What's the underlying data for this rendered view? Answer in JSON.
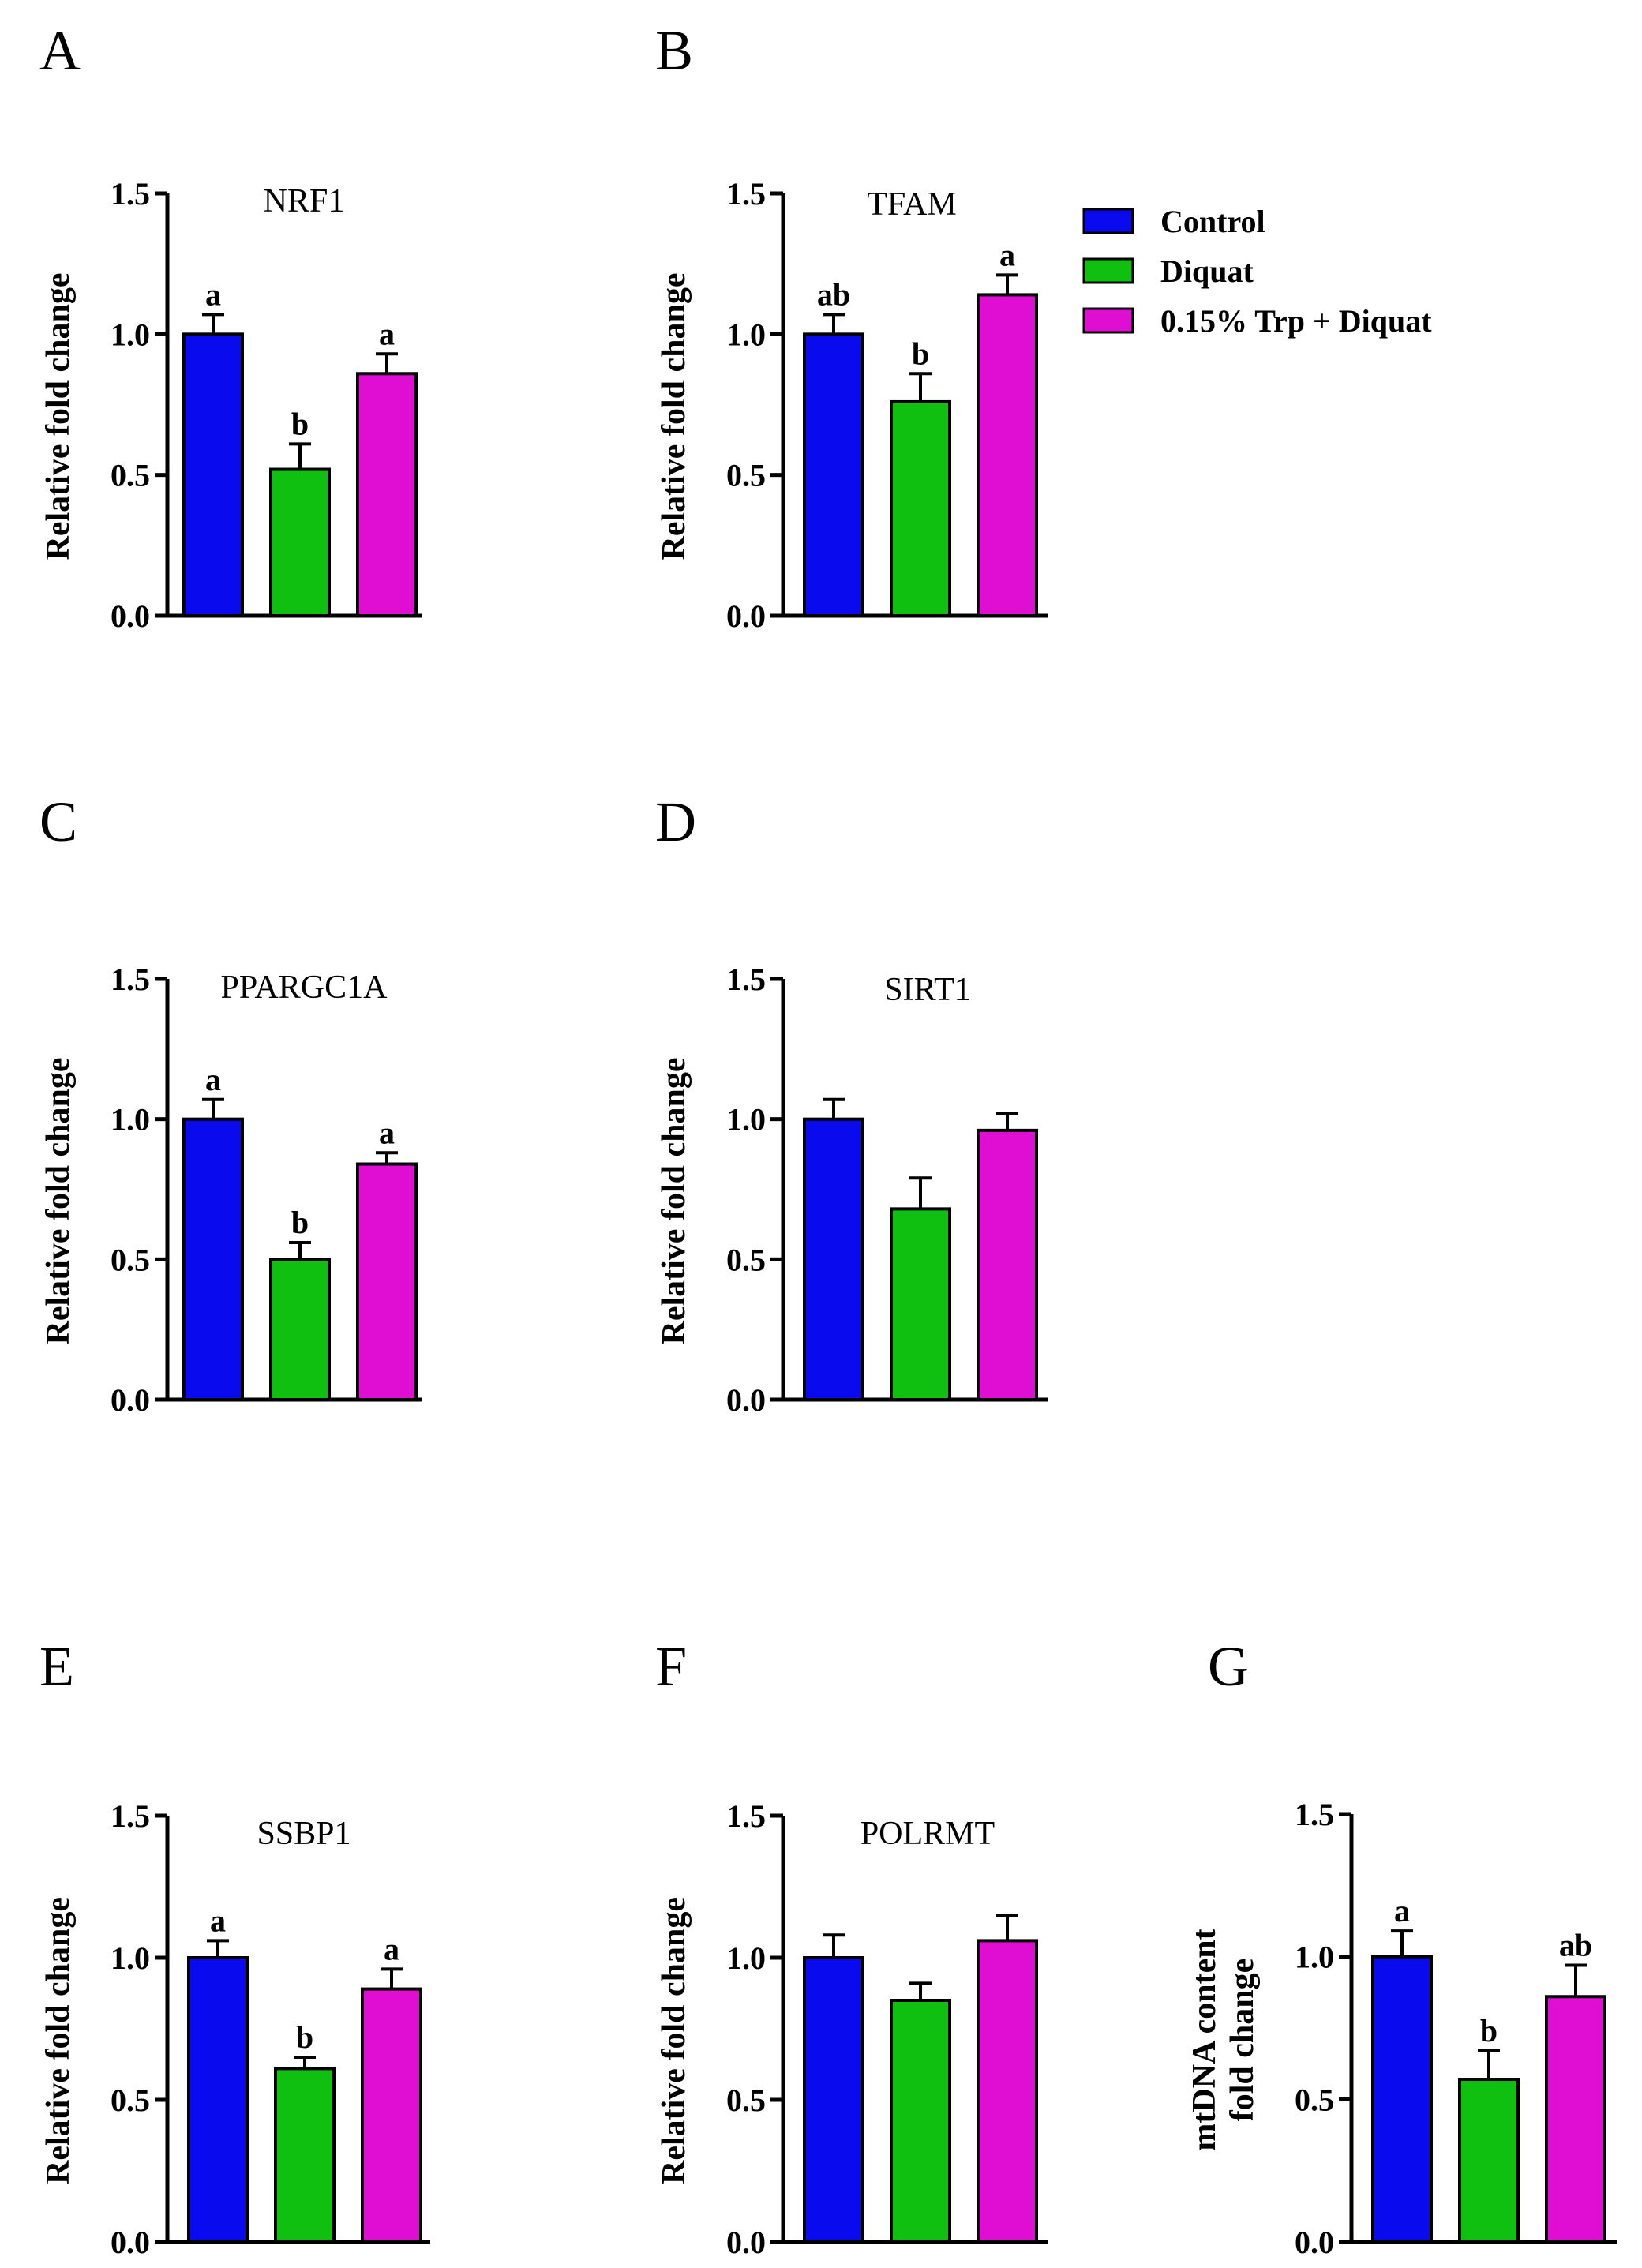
{
  "chart_data": [
    {
      "type": "bar",
      "panel": "A",
      "title": "NRF1",
      "ylabel": "Relative fold change",
      "ylim": [
        0,
        1.5
      ],
      "yticks": [
        "0.0",
        "0.5",
        "1.0",
        "1.5"
      ],
      "series": [
        {
          "name": "Control",
          "value": 1.0,
          "error": 0.07,
          "sig": "a"
        },
        {
          "name": "Diquat",
          "value": 0.52,
          "error": 0.09,
          "sig": "b"
        },
        {
          "name": "0.15% Trp + Diquat",
          "value": 0.86,
          "error": 0.07,
          "sig": "a"
        }
      ]
    },
    {
      "type": "bar",
      "panel": "B",
      "title": "TFAM",
      "ylabel": "Relative fold change",
      "ylim": [
        0,
        1.5
      ],
      "yticks": [
        "0.0",
        "0.5",
        "1.0",
        "1.5"
      ],
      "series": [
        {
          "name": "Control",
          "value": 1.0,
          "error": 0.07,
          "sig": "ab"
        },
        {
          "name": "Diquat",
          "value": 0.76,
          "error": 0.1,
          "sig": "b"
        },
        {
          "name": "0.15% Trp + Diquat",
          "value": 1.14,
          "error": 0.07,
          "sig": "a"
        }
      ]
    },
    {
      "type": "bar",
      "panel": "C",
      "title": "PPARGC1A",
      "ylabel": "Relative fold change",
      "ylim": [
        0,
        1.5
      ],
      "yticks": [
        "0.0",
        "0.5",
        "1.0",
        "1.5"
      ],
      "series": [
        {
          "name": "Control",
          "value": 1.0,
          "error": 0.07,
          "sig": "a"
        },
        {
          "name": "Diquat",
          "value": 0.5,
          "error": 0.06,
          "sig": "b"
        },
        {
          "name": "0.15% Trp + Diquat",
          "value": 0.84,
          "error": 0.04,
          "sig": "a"
        }
      ]
    },
    {
      "type": "bar",
      "panel": "D",
      "title": "SIRT1",
      "ylabel": "Relative fold change",
      "ylim": [
        0,
        1.5
      ],
      "yticks": [
        "0.0",
        "0.5",
        "1.0",
        "1.5"
      ],
      "series": [
        {
          "name": "Control",
          "value": 1.0,
          "error": 0.07,
          "sig": ""
        },
        {
          "name": "Diquat",
          "value": 0.68,
          "error": 0.11,
          "sig": ""
        },
        {
          "name": "0.15% Trp + Diquat",
          "value": 0.96,
          "error": 0.06,
          "sig": ""
        }
      ]
    },
    {
      "type": "bar",
      "panel": "E",
      "title": "SSBP1",
      "ylabel": "Relative fold change",
      "ylim": [
        0,
        1.5
      ],
      "yticks": [
        "0.0",
        "0.5",
        "1.0",
        "1.5"
      ],
      "series": [
        {
          "name": "Control",
          "value": 1.0,
          "error": 0.06,
          "sig": "a"
        },
        {
          "name": "Diquat",
          "value": 0.61,
          "error": 0.04,
          "sig": "b"
        },
        {
          "name": "0.15% Trp + Diquat",
          "value": 0.89,
          "error": 0.07,
          "sig": "a"
        }
      ]
    },
    {
      "type": "bar",
      "panel": "F",
      "title": "POLRMT",
      "ylabel": "Relative fold change",
      "ylim": [
        0,
        1.5
      ],
      "yticks": [
        "0.0",
        "0.5",
        "1.0",
        "1.5"
      ],
      "series": [
        {
          "name": "Control",
          "value": 1.0,
          "error": 0.08,
          "sig": ""
        },
        {
          "name": "Diquat",
          "value": 0.85,
          "error": 0.06,
          "sig": ""
        },
        {
          "name": "0.15% Trp + Diquat",
          "value": 1.06,
          "error": 0.09,
          "sig": ""
        }
      ]
    },
    {
      "type": "bar",
      "panel": "G",
      "title": "",
      "ylabel": "mtDNA content\nfold change",
      "ylim": [
        0,
        1.5
      ],
      "yticks": [
        "0.0",
        "0.5",
        "1.0",
        "1.5"
      ],
      "series": [
        {
          "name": "Control",
          "value": 1.0,
          "error": 0.09,
          "sig": "a"
        },
        {
          "name": "Diquat",
          "value": 0.57,
          "error": 0.1,
          "sig": "b"
        },
        {
          "name": "0.15% Trp + Diquat",
          "value": 0.86,
          "error": 0.11,
          "sig": "ab"
        }
      ]
    }
  ],
  "legend": {
    "entries": [
      {
        "label": "Control",
        "color": "#0a0aee"
      },
      {
        "label": "Diquat",
        "color": "#10c010"
      },
      {
        "label": "0.15% Trp + Diquat",
        "color": "#e00ed2"
      }
    ]
  },
  "colors": [
    "#0a0aee",
    "#10c010",
    "#e00ed2"
  ]
}
